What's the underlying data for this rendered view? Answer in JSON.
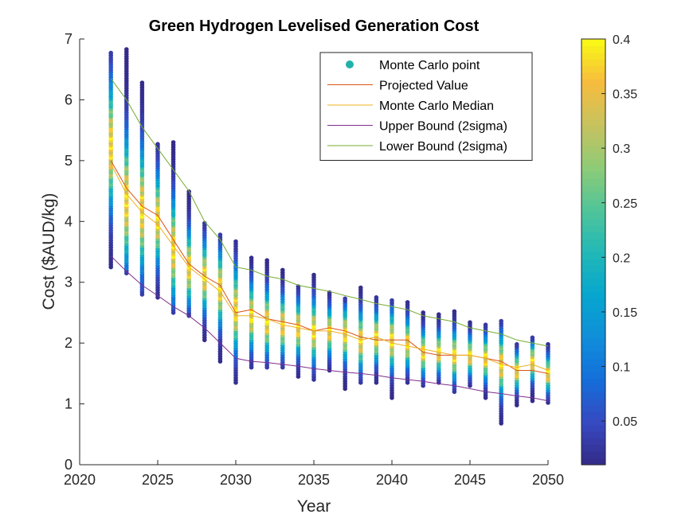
{
  "chart_data": {
    "type": "scatter",
    "title": "Green Hydrogen Levelised Generation Cost",
    "xlabel": "Year",
    "ylabel": "Cost ($AUD/kg)",
    "xlim": [
      2020,
      2050
    ],
    "ylim": [
      0,
      7
    ],
    "xticks": [
      2020,
      2025,
      2030,
      2035,
      2040,
      2045,
      2050
    ],
    "yticks": [
      0,
      1,
      2,
      3,
      4,
      5,
      6,
      7
    ],
    "grid": false,
    "legend_position": "top-right",
    "colorbar": {
      "range": [
        0.01,
        0.4
      ],
      "ticks": [
        0.05,
        0.1,
        0.15,
        0.2,
        0.25,
        0.3,
        0.35,
        0.4
      ],
      "tick_labels": [
        "0.05",
        "0.1",
        "0.15",
        "0.2",
        "0.25",
        "0.3",
        "0.35",
        "0.4"
      ],
      "colormap": "parula"
    },
    "x": [
      2022,
      2023,
      2024,
      2025,
      2026,
      2027,
      2028,
      2029,
      2030,
      2031,
      2032,
      2033,
      2034,
      2035,
      2036,
      2037,
      2038,
      2039,
      2040,
      2041,
      2042,
      2043,
      2044,
      2045,
      2046,
      2047,
      2048,
      2049,
      2050
    ],
    "monte_carlo": {
      "name": "Monte Carlo point",
      "marker_color": "#20b2aa",
      "min": [
        3.25,
        3.15,
        2.8,
        2.75,
        2.5,
        2.45,
        2.05,
        1.7,
        1.35,
        1.6,
        1.6,
        1.6,
        1.45,
        1.4,
        1.55,
        1.25,
        1.35,
        1.35,
        1.1,
        1.35,
        1.3,
        1.35,
        1.2,
        1.3,
        1.1,
        0.68,
        0.98,
        1.05,
        1.02
      ],
      "max": [
        6.8,
        6.85,
        6.28,
        5.28,
        5.32,
        4.5,
        3.97,
        3.78,
        3.67,
        3.4,
        3.37,
        3.2,
        2.96,
        3.12,
        2.83,
        2.75,
        2.93,
        2.75,
        2.72,
        2.68,
        2.5,
        2.47,
        2.55,
        2.35,
        2.33,
        2.38,
        2.0,
        2.1,
        2.0
      ],
      "peak": [
        5.25,
        4.35,
        4.2,
        4.05,
        3.55,
        3.25,
        3.1,
        2.9,
        2.55,
        2.45,
        2.35,
        2.3,
        2.25,
        2.2,
        2.2,
        2.15,
        2.05,
        2.1,
        2.05,
        2.0,
        1.85,
        1.85,
        1.8,
        1.8,
        1.75,
        1.65,
        1.55,
        1.7,
        1.5
      ]
    },
    "series": [
      {
        "name": "Projected Value",
        "color": "#d95319",
        "values": [
          5.0,
          4.55,
          4.25,
          4.1,
          3.7,
          3.3,
          3.1,
          2.95,
          2.5,
          2.55,
          2.4,
          2.35,
          2.3,
          2.2,
          2.25,
          2.2,
          2.1,
          2.05,
          2.05,
          2.05,
          1.85,
          1.8,
          1.8,
          1.8,
          1.75,
          1.7,
          1.55,
          1.55,
          1.5
        ]
      },
      {
        "name": "Monte Carlo Median",
        "color": "#edb120",
        "values": [
          4.95,
          4.45,
          4.15,
          3.95,
          3.6,
          3.25,
          3.05,
          2.85,
          2.45,
          2.45,
          2.4,
          2.3,
          2.25,
          2.2,
          2.2,
          2.15,
          2.05,
          2.1,
          2.0,
          1.95,
          1.9,
          1.85,
          1.8,
          1.8,
          1.75,
          1.65,
          1.6,
          1.65,
          1.55
        ]
      },
      {
        "name": "Upper Bound (2sigma)",
        "color": "#7e2f8e",
        "values": [
          3.43,
          3.18,
          2.95,
          2.78,
          2.6,
          2.45,
          2.25,
          2.0,
          1.75,
          1.7,
          1.68,
          1.65,
          1.62,
          1.58,
          1.55,
          1.52,
          1.5,
          1.47,
          1.43,
          1.4,
          1.37,
          1.33,
          1.3,
          1.25,
          1.2,
          1.17,
          1.13,
          1.1,
          1.05
        ]
      },
      {
        "name": "Lower Bound (2sigma)",
        "color": "#77ac30",
        "values": [
          6.35,
          6.0,
          5.55,
          5.2,
          4.85,
          4.5,
          4.0,
          3.7,
          3.25,
          3.2,
          3.1,
          3.05,
          2.95,
          2.9,
          2.85,
          2.78,
          2.72,
          2.65,
          2.6,
          2.55,
          2.45,
          2.4,
          2.35,
          2.25,
          2.2,
          2.15,
          2.05,
          2.0,
          1.95
        ]
      }
    ]
  }
}
